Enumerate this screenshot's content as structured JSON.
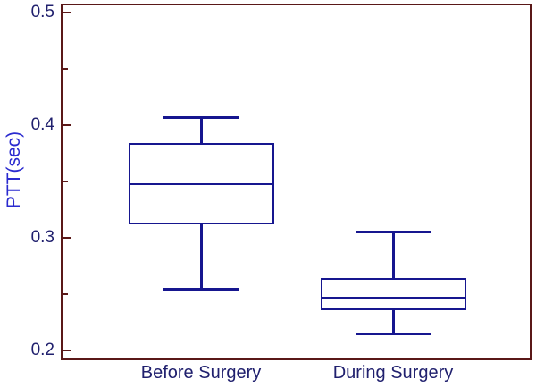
{
  "figure": {
    "background": "#ffffff",
    "frame_color": "#5A1818",
    "box_color": "#16168F",
    "tick_label_color": "#20206E",
    "axis_label_color": "#2A2ACF"
  },
  "chart_data": {
    "type": "boxplot",
    "title": "",
    "xlabel": "",
    "ylabel": "PTT(sec)",
    "ylim": [
      0.2,
      0.5
    ],
    "yticks_major": [
      0.5,
      0.4,
      0.3,
      0.2
    ],
    "ytick_labels": [
      "0.5",
      "0.4",
      "0.3",
      "0.2"
    ],
    "yticks_minor": [
      0.45,
      0.35,
      0.25
    ],
    "grid": false,
    "legend": null,
    "categories": [
      "Before Surgery",
      "During Surgery"
    ],
    "series": [
      {
        "name": "Before Surgery",
        "whisker_low": 0.254,
        "q1": 0.312,
        "median": 0.348,
        "q3": 0.384,
        "whisker_high": 0.407
      },
      {
        "name": "During Surgery",
        "whisker_low": 0.215,
        "q1": 0.236,
        "median": 0.247,
        "q3": 0.264,
        "whisker_high": 0.305
      }
    ]
  }
}
